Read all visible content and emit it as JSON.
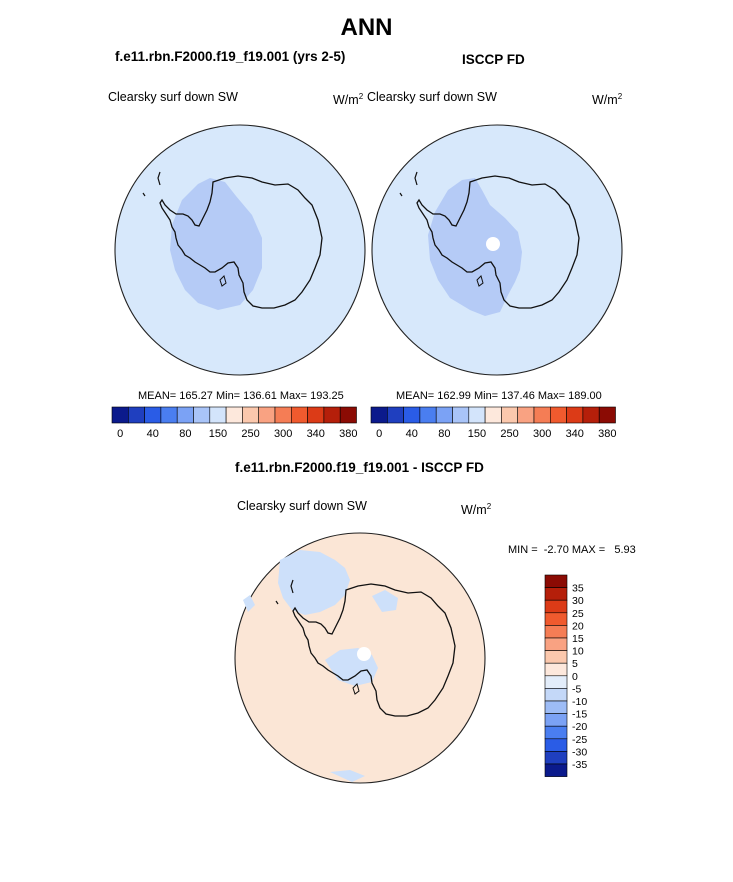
{
  "main_title": "ANN",
  "top_left": {
    "title": "f.e11.rbn.F2000.f19_f19.001 (yrs 2-5)",
    "variable": "Clearsky surf down SW",
    "units_base": "W/m",
    "units_exp": "2",
    "stats": "MEAN= 165.27  Min= 136.61  Max= 193.25"
  },
  "top_right": {
    "title": "ISCCP FD",
    "variable": "Clearsky surf down SW",
    "units_base": "W/m",
    "units_exp": "2",
    "stats": "MEAN= 162.99  Min= 137.46  Max= 189.00"
  },
  "bottom": {
    "title": "f.e11.rbn.F2000.f19_f19.001 - ISCCP FD",
    "variable": "Clearsky surf down SW",
    "units_base": "W/m",
    "units_exp": "2",
    "minmax": "MIN =  -2.70 MAX =   5.93"
  },
  "colorbar_top": {
    "colors": [
      "#0b1a8c",
      "#1f3fbf",
      "#2a5ce6",
      "#4a7ef0",
      "#7ba2f5",
      "#a9c4f8",
      "#d3e4fb",
      "#fde8dc",
      "#fbc8ad",
      "#f9a282",
      "#f57d55",
      "#f05a2e",
      "#dc3b17",
      "#b51f0a",
      "#8b0b04"
    ],
    "tick_labels": [
      "0",
      "40",
      "80",
      "150",
      "250",
      "300",
      "340",
      "380"
    ]
  },
  "colorbar_bottom": {
    "colors": [
      "#8b0b04",
      "#b51f0a",
      "#dc3b17",
      "#f05a2e",
      "#f57d55",
      "#f9a282",
      "#fbc8ad",
      "#fde8dc",
      "#e3edfa",
      "#c4d8f8",
      "#9dbcf6",
      "#7ba2f5",
      "#4a7ef0",
      "#2a5ce6",
      "#1f3fbf",
      "#0b1a8c"
    ],
    "tick_labels": [
      "35",
      "30",
      "25",
      "20",
      "15",
      "10",
      "5",
      "0",
      "-5",
      "-10",
      "-15",
      "-20",
      "-25",
      "-30",
      "-35"
    ]
  },
  "map_colors": {
    "ocean_top": "#d7e8fb",
    "contour_top": "#b5cbf6",
    "ocean_diff": "#fbe6d6",
    "diff_neg": "#cde0fa",
    "missing": "#ffffff"
  }
}
